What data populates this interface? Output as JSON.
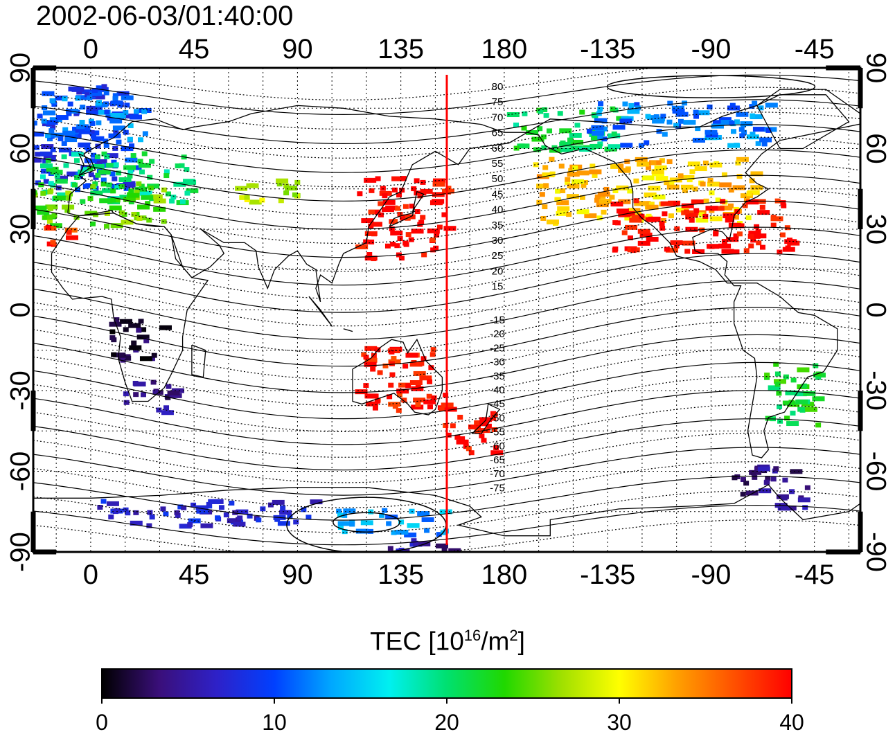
{
  "title": "2002-06-03/01:40:00",
  "colors": {
    "highlight_line": "#ff0000",
    "coast": "#000000",
    "grid": "#000000"
  },
  "map": {
    "lon_range_display": [
      -25,
      335
    ],
    "lat_range": [
      -90,
      90
    ],
    "top_lon_ticks": [
      "0",
      "45",
      "90",
      "135",
      "180",
      "-135",
      "-90",
      "-45"
    ],
    "bottom_lon_ticks": [
      "0",
      "45",
      "90",
      "135",
      "180",
      "-135",
      "-90",
      "-45"
    ],
    "lat_ticks": [
      "90",
      "60",
      "30",
      "0",
      "-30",
      "-60",
      "-90"
    ],
    "highlight_longitude": 155,
    "contour_labels_north": [
      "80",
      "75",
      "70",
      "65",
      "60",
      "55",
      "50",
      "45",
      "40",
      "35",
      "30",
      "25",
      "20",
      "15"
    ],
    "contour_labels_south": [
      "-15",
      "-20",
      "-25",
      "-30",
      "-35",
      "-40",
      "-45",
      "-50",
      "-55",
      "-60",
      "-65",
      "-70",
      "-75"
    ]
  },
  "colorbar": {
    "label_main": "TEC  [10",
    "label_exp1": "16",
    "label_mid": "/m",
    "label_exp2": "2",
    "label_end": "]",
    "min": 0,
    "max": 40,
    "ticks": [
      "0",
      "10",
      "20",
      "30",
      "40"
    ],
    "stops": [
      "#000000",
      "#3a0f7a",
      "#2e21c8",
      "#0040ff",
      "#00a8ff",
      "#00f0f0",
      "#00e070",
      "#20d800",
      "#a0e000",
      "#ffff00",
      "#ffa000",
      "#ff5000",
      "#ff0000"
    ]
  },
  "tec_regions": [
    {
      "lon": -15,
      "lat": 65,
      "w": 40,
      "h": 25,
      "tec": 9
    },
    {
      "lon": 0,
      "lat": 72,
      "w": 30,
      "h": 10,
      "tec": 12
    },
    {
      "lon": 10,
      "lat": 50,
      "w": 40,
      "h": 12,
      "tec": 20
    },
    {
      "lon": 0,
      "lat": 40,
      "w": 40,
      "h": 10,
      "tec": 25
    },
    {
      "lon": -15,
      "lat": 28,
      "w": 8,
      "h": 6,
      "tec": 38
    },
    {
      "lon": 75,
      "lat": 45,
      "w": 18,
      "h": 6,
      "tec": 28
    },
    {
      "lon": 135,
      "lat": 35,
      "w": 25,
      "h": 20,
      "tec": 40
    },
    {
      "lon": 240,
      "lat": 45,
      "w": 60,
      "h": 15,
      "tec": 32
    },
    {
      "lon": 265,
      "lat": 32,
      "w": 50,
      "h": 12,
      "tec": 40
    },
    {
      "lon": 205,
      "lat": 68,
      "w": 30,
      "h": 10,
      "tec": 21
    },
    {
      "lon": 255,
      "lat": 70,
      "w": 50,
      "h": 10,
      "tec": 12
    },
    {
      "lon": 165,
      "lat": -45,
      "w": 15,
      "h": 10,
      "tec": 40
    },
    {
      "lon": 135,
      "lat": -25,
      "w": 25,
      "h": 15,
      "tec": 39
    },
    {
      "lon": 305,
      "lat": -30,
      "w": 15,
      "h": 15,
      "tec": 22
    },
    {
      "lon": 295,
      "lat": -65,
      "w": 20,
      "h": 10,
      "tec": 4
    },
    {
      "lon": 20,
      "lat": -10,
      "w": 15,
      "h": 10,
      "tec": 2
    },
    {
      "lon": 25,
      "lat": -32,
      "w": 15,
      "h": 8,
      "tec": 4
    },
    {
      "lon": 50,
      "lat": -75,
      "w": 60,
      "h": 6,
      "tec": 7
    },
    {
      "lon": 130,
      "lat": -78,
      "w": 30,
      "h": 6,
      "tec": 13
    },
    {
      "lon": 140,
      "lat": -88,
      "w": 25,
      "h": 4,
      "tec": 5
    }
  ]
}
